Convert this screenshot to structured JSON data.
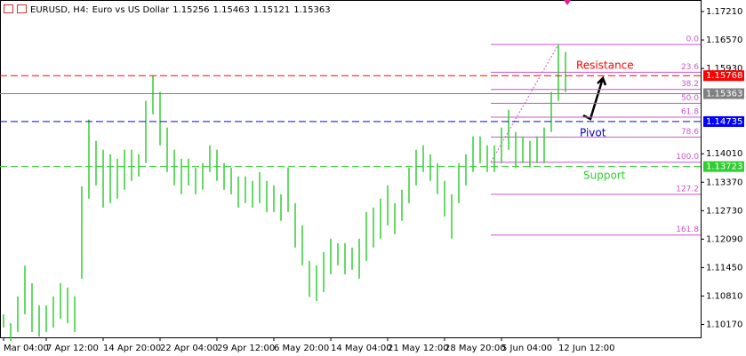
{
  "chart_data": {
    "type": "bar",
    "symbol": "EURUSD, H4:",
    "description": "Euro vs US Dollar",
    "quote": [
      1.15256,
      1.15463,
      1.15121,
      1.15363
    ],
    "color": "#32cd32",
    "categories": [
      "Mar 04:00",
      null,
      null,
      null,
      null,
      null,
      "7 Apr 12:00",
      null,
      null,
      null,
      null,
      null,
      null,
      null,
      "14 Apr 20:00",
      null,
      null,
      null,
      null,
      null,
      null,
      null,
      "22 Apr 04:00",
      null,
      null,
      null,
      null,
      null,
      null,
      null,
      "29 Apr 12:00",
      null,
      null,
      null,
      null,
      null,
      null,
      null,
      "6 May 20:00",
      null,
      null,
      null,
      null,
      null,
      null,
      null,
      "14 May 04:00",
      null,
      null,
      null,
      null,
      null,
      null,
      null,
      "21 May 12:00",
      null,
      null,
      null,
      null,
      null,
      null,
      null,
      "28 May 20:00",
      null,
      null,
      null,
      null,
      null,
      null,
      null,
      "5 Jun 04:00",
      null,
      null,
      null,
      null,
      null,
      null,
      null,
      "12 Jun 12:00",
      null
    ],
    "high": [
      1.104,
      1.102,
      1.108,
      1.1149,
      1.111,
      1.106,
      1.106,
      1.108,
      1.111,
      1.11,
      1.108,
      1.1328,
      1.1478,
      1.143,
      1.141,
      1.14,
      1.139,
      1.141,
      1.141,
      1.14,
      1.152,
      1.1577,
      1.154,
      1.146,
      1.141,
      1.139,
      1.139,
      1.137,
      1.138,
      1.142,
      1.141,
      1.138,
      1.137,
      1.135,
      1.135,
      1.134,
      1.136,
      1.134,
      1.133,
      1.131,
      1.137,
      1.129,
      1.124,
      1.116,
      1.115,
      1.118,
      1.121,
      1.12,
      1.12,
      1.119,
      1.121,
      1.127,
      1.128,
      1.13,
      1.133,
      1.129,
      1.132,
      1.137,
      1.141,
      1.142,
      1.14,
      1.138,
      1.134,
      1.131,
      1.138,
      1.14,
      1.144,
      1.144,
      1.142,
      1.142,
      1.146,
      1.15,
      1.145,
      1.144,
      1.143,
      1.144,
      1.146,
      1.154,
      1.1647,
      1.163
    ],
    "low": [
      1.101,
      1.098,
      1.1,
      1.104,
      1.1,
      1.099,
      1.1,
      1.101,
      1.103,
      1.102,
      1.1,
      1.112,
      1.13,
      1.133,
      1.128,
      1.129,
      1.13,
      1.132,
      1.134,
      1.135,
      1.138,
      1.149,
      1.142,
      1.136,
      1.133,
      1.131,
      1.133,
      1.131,
      1.132,
      1.136,
      1.134,
      1.132,
      1.131,
      1.128,
      1.129,
      1.128,
      1.129,
      1.127,
      1.127,
      1.125,
      1.127,
      1.119,
      1.115,
      1.1079,
      1.107,
      1.109,
      1.113,
      1.115,
      1.113,
      1.114,
      1.112,
      1.116,
      1.119,
      1.121,
      1.124,
      1.122,
      1.125,
      1.129,
      1.133,
      1.136,
      1.134,
      1.131,
      1.126,
      1.121,
      1.129,
      1.133,
      1.136,
      1.138,
      1.136,
      1.136,
      1.138,
      1.141,
      1.137,
      1.138,
      1.137,
      1.138,
      1.138,
      1.145,
      1.152,
      1.154
    ],
    "ylim": [
      1.0988,
      1.1747
    ],
    "yticks": [
      {
        "value": 1.1721,
        "label": "1.17210"
      },
      {
        "value": 1.1657,
        "label": "1.16570"
      },
      {
        "value": 1.1593,
        "label": "1.15930"
      },
      {
        "value": 1.1401,
        "label": "1.14010"
      },
      {
        "value": 1.1337,
        "label": "1.13370"
      },
      {
        "value": 1.1273,
        "label": "1.12730"
      },
      {
        "value": 1.1209,
        "label": "1.12090"
      },
      {
        "value": 1.1145,
        "label": "1.11450"
      },
      {
        "value": 1.1081,
        "label": "1.10810"
      },
      {
        "value": 1.1017,
        "label": "1.10170"
      }
    ],
    "levels": [
      {
        "price": 1.15768,
        "color": "#ff0000",
        "style": "dashed"
      },
      {
        "price": 1.15363,
        "color": "#808080",
        "style": "solid"
      },
      {
        "price": 1.14735,
        "color": "#0000ff",
        "style": "dashed"
      },
      {
        "price": 1.13723,
        "color": "#32cd32",
        "style": "dashed"
      }
    ],
    "fib": {
      "high": 1.1647,
      "low": 1.1382,
      "color": "#cc55cc",
      "levels": [
        {
          "value": 0,
          "label": "0.0"
        },
        23.6,
        38.2,
        {
          "value": 50,
          "label": "50.0"
        },
        61.8,
        78.6,
        {
          "value": 100,
          "label": "100.0"
        },
        127.2,
        161.8
      ]
    },
    "annotations": [
      {
        "text": "Resistance",
        "color": "#ff0000"
      },
      {
        "text": "Pivot",
        "color": "#0000cc"
      },
      {
        "text": "Support",
        "color": "#32cd32"
      }
    ]
  }
}
